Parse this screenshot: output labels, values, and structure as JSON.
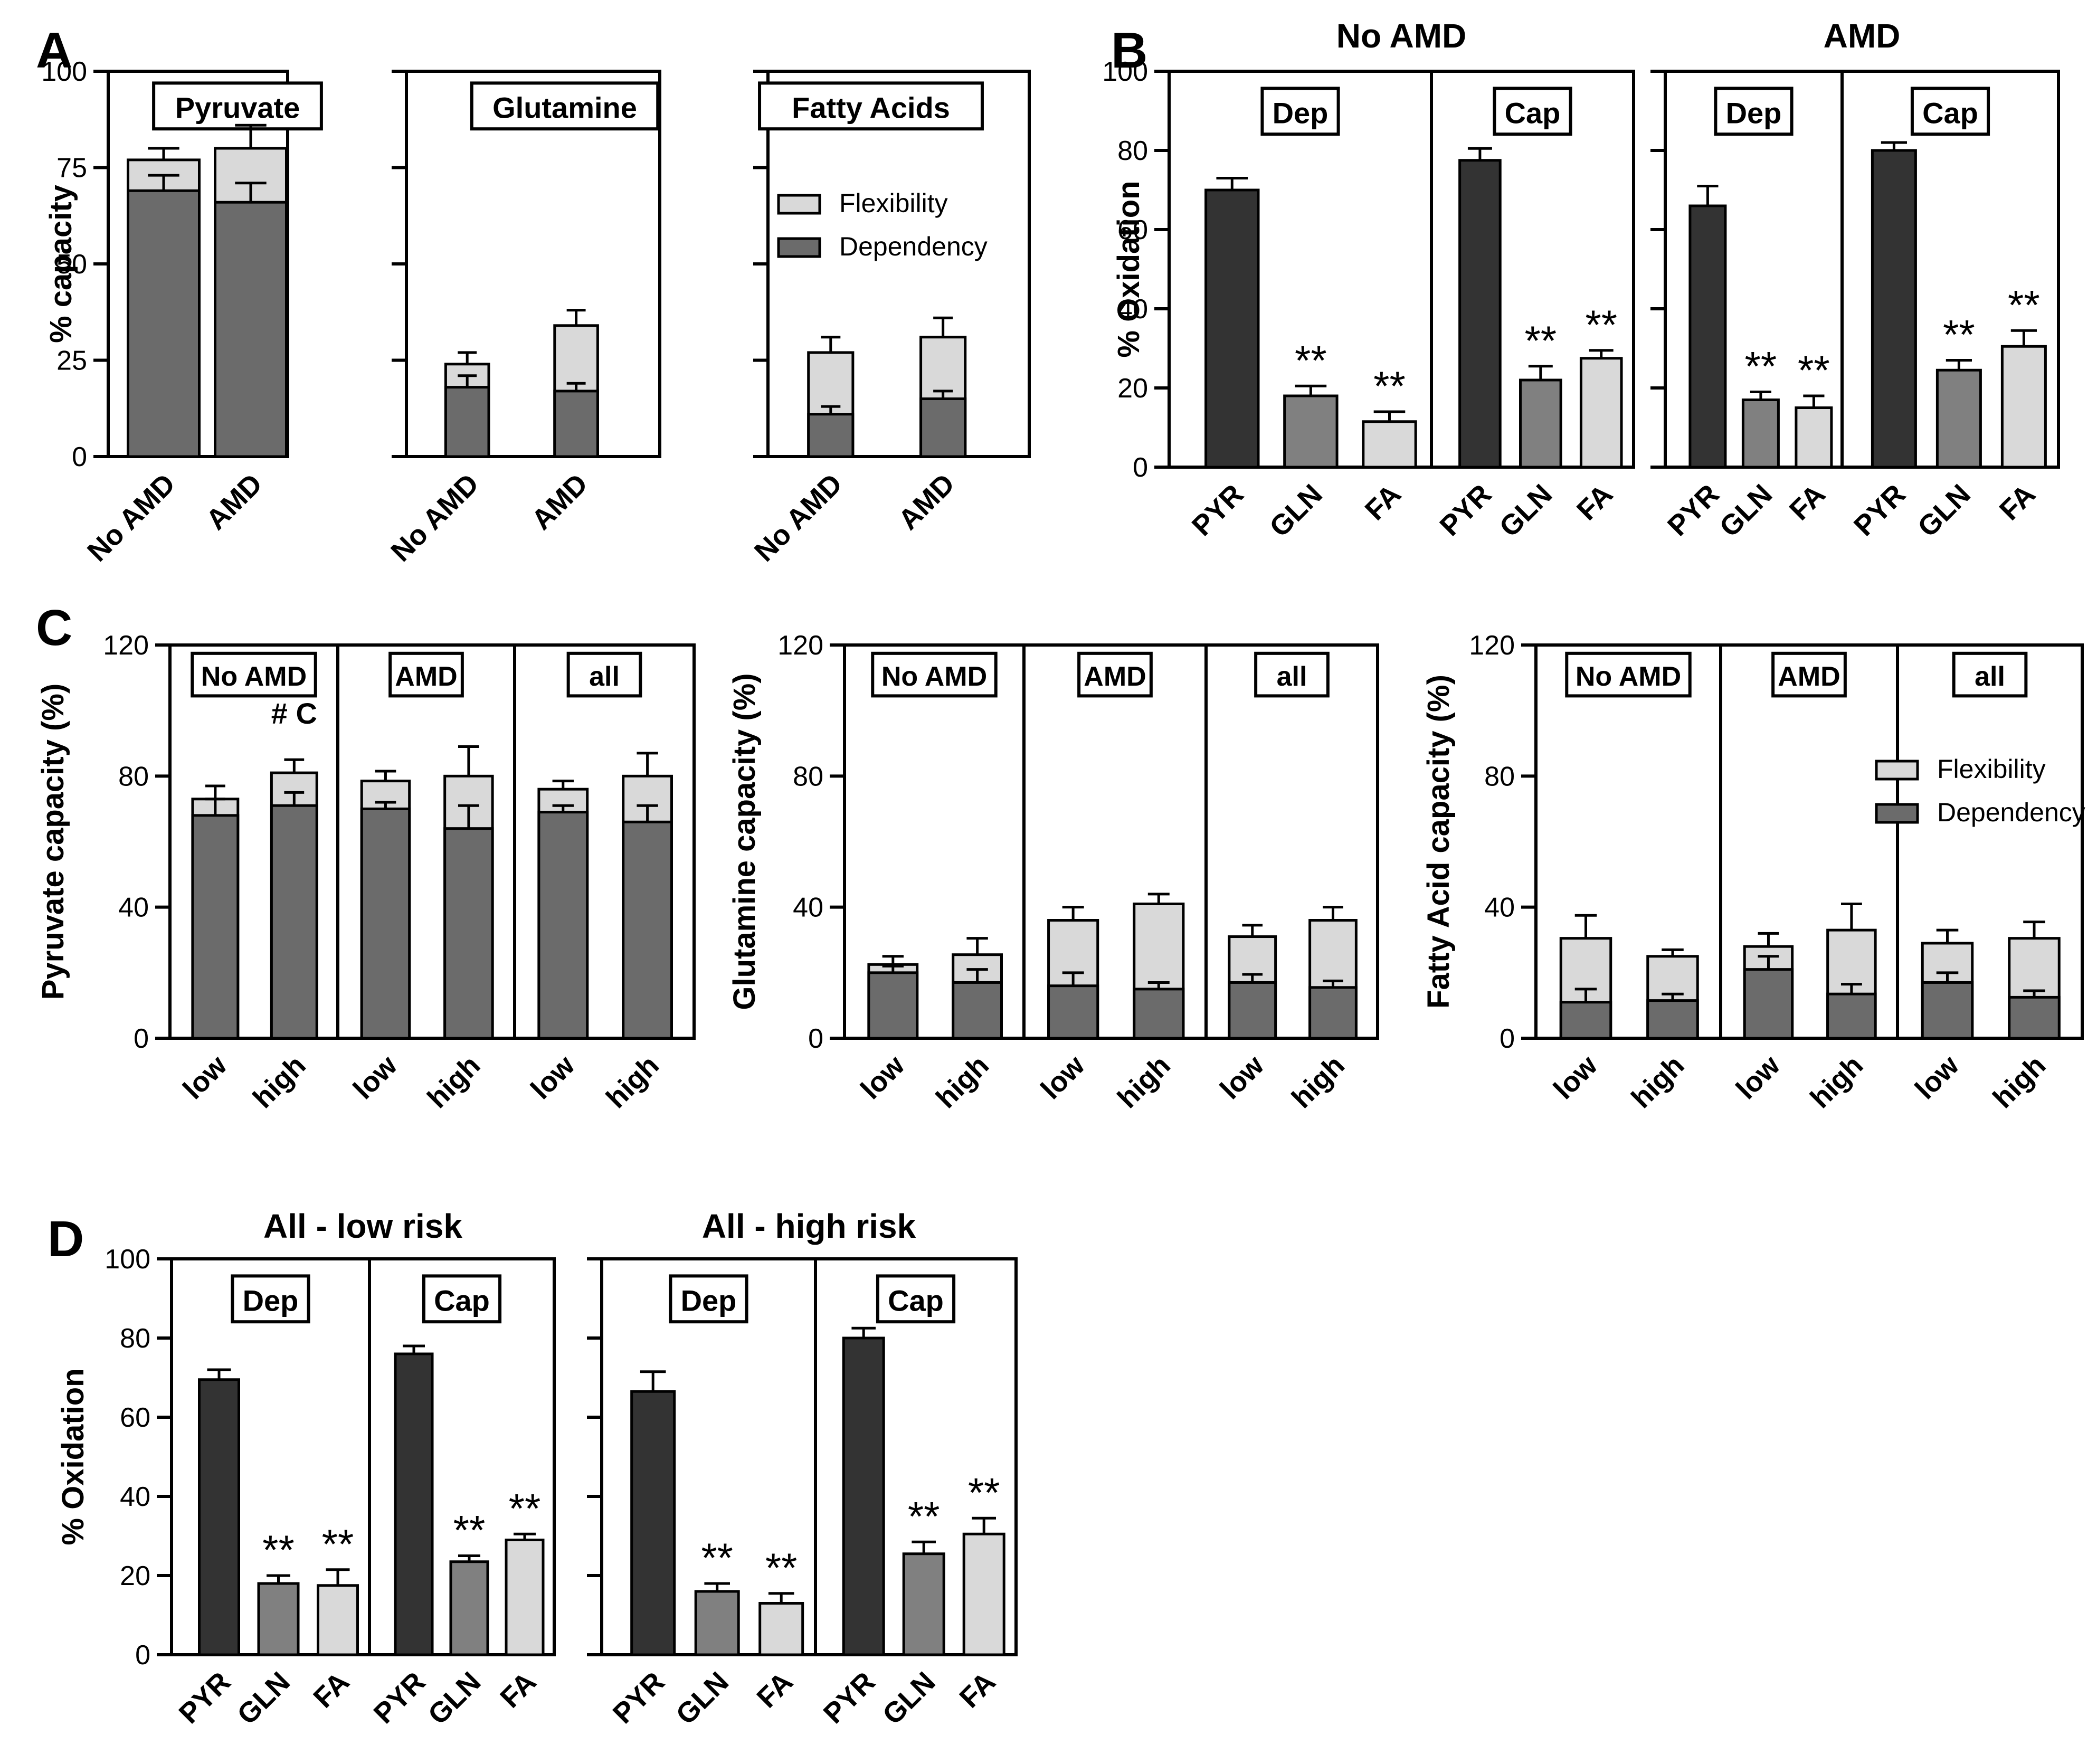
{
  "colors": {
    "dark": "#333333",
    "mid": "#808080",
    "light": "#d9d9d9",
    "axis": "#000000",
    "flex": "#d9d9d9",
    "dep": "#6b6b6b"
  },
  "panel_labels": {
    "A": "A",
    "B": "B",
    "C": "C",
    "D": "D"
  },
  "chart_data": [
    {
      "id": "A1",
      "type": "bar",
      "stacked": true,
      "panel": "A",
      "box_label": "Pyruvate",
      "ylabel": "% capacity",
      "yticks": [
        0,
        25,
        50,
        75,
        100
      ],
      "ylim": [
        0,
        100
      ],
      "categories": [
        "No AMD",
        "AMD"
      ],
      "series": [
        {
          "name": "Dependency",
          "values": [
            69,
            66
          ],
          "err": [
            4,
            5
          ]
        },
        {
          "name": "Flexibility",
          "values": [
            8,
            14
          ],
          "err": [
            3,
            6
          ]
        }
      ]
    },
    {
      "id": "A2",
      "type": "bar",
      "stacked": true,
      "panel": "A",
      "box_label": "Glutamine",
      "ylabel": "",
      "yticks": [
        0,
        25,
        50,
        75,
        100
      ],
      "ylim": [
        0,
        100
      ],
      "categories": [
        "No AMD",
        "AMD"
      ],
      "series": [
        {
          "name": "Dependency",
          "values": [
            18,
            17
          ],
          "err": [
            3,
            2
          ]
        },
        {
          "name": "Flexibility",
          "values": [
            6,
            17
          ],
          "err": [
            3,
            4
          ]
        }
      ]
    },
    {
      "id": "A3",
      "type": "bar",
      "stacked": true,
      "panel": "A",
      "box_label": "Fatty Acids",
      "ylabel": "",
      "yticks": [
        0,
        25,
        50,
        75,
        100
      ],
      "ylim": [
        0,
        100
      ],
      "categories": [
        "No AMD",
        "AMD"
      ],
      "legend": [
        "Flexibility",
        "Dependency"
      ],
      "legend_position": "right",
      "series": [
        {
          "name": "Dependency",
          "values": [
            11,
            15
          ],
          "err": [
            2,
            2
          ]
        },
        {
          "name": "Flexibility",
          "values": [
            16,
            16
          ],
          "err": [
            4,
            5
          ]
        }
      ]
    },
    {
      "id": "B",
      "type": "bar",
      "panel": "B",
      "ylabel": "% Oxidation",
      "yticks": [
        0,
        20,
        40,
        60,
        80,
        100
      ],
      "ylim": [
        0,
        100
      ],
      "groups": [
        {
          "title": "No AMD",
          "sub": [
            {
              "label": "Dep",
              "categories": [
                "PYR",
                "GLN",
                "FA"
              ],
              "values": [
                70,
                18,
                11.5
              ],
              "err": [
                3,
                2.5,
                2.5
              ],
              "sig": [
                "",
                "**",
                "**"
              ]
            },
            {
              "label": "Cap",
              "categories": [
                "PYR",
                "GLN",
                "FA"
              ],
              "values": [
                77.5,
                22,
                27.5
              ],
              "err": [
                3,
                3.5,
                2
              ],
              "sig": [
                "",
                "**",
                "**"
              ]
            }
          ]
        },
        {
          "title": "AMD",
          "sub": [
            {
              "label": "Dep",
              "categories": [
                "PYR",
                "GLN",
                "FA"
              ],
              "values": [
                66,
                17,
                15
              ],
              "err": [
                5,
                2,
                3
              ],
              "sig": [
                "",
                "**",
                "**"
              ]
            },
            {
              "label": "Cap",
              "categories": [
                "PYR",
                "GLN",
                "FA"
              ],
              "values": [
                80,
                24.5,
                30.5
              ],
              "err": [
                2,
                2.5,
                4
              ],
              "sig": [
                "",
                "**",
                "**"
              ]
            }
          ]
        }
      ]
    },
    {
      "id": "C1",
      "type": "bar",
      "stacked": true,
      "panel": "C",
      "ylabel": "Pyruvate capacity (%)",
      "yticks": [
        0,
        40,
        80,
        120
      ],
      "ylim": [
        0,
        120
      ],
      "groups": [
        {
          "label": "No AMD",
          "categories": [
            "low",
            "high"
          ],
          "dep": [
            68,
            71
          ],
          "dep_err": [
            5,
            4
          ],
          "flex": [
            5,
            10
          ],
          "flex_err": [
            4,
            4
          ]
        },
        {
          "label": "AMD",
          "categories": [
            "low",
            "high"
          ],
          "dep": [
            70,
            64
          ],
          "dep_err": [
            2,
            7
          ],
          "flex": [
            8.5,
            16
          ],
          "flex_err": [
            3,
            9
          ]
        },
        {
          "label": "all",
          "categories": [
            "low",
            "high"
          ],
          "dep": [
            69,
            66
          ],
          "dep_err": [
            2,
            5
          ],
          "flex": [
            7,
            14
          ],
          "flex_err": [
            2.5,
            7
          ]
        }
      ],
      "annotation": "# C"
    },
    {
      "id": "C2",
      "type": "bar",
      "stacked": true,
      "panel": "C",
      "ylabel": "Glutamine capacity (%)",
      "yticks": [
        0,
        40,
        80,
        120
      ],
      "ylim": [
        0,
        120
      ],
      "groups": [
        {
          "label": "No AMD",
          "categories": [
            "low",
            "high"
          ],
          "dep": [
            20,
            17
          ],
          "dep_err": [
            2,
            4
          ],
          "flex": [
            2.5,
            8.5
          ],
          "flex_err": [
            2.5,
            5
          ]
        },
        {
          "label": "AMD",
          "categories": [
            "low",
            "high"
          ],
          "dep": [
            16,
            15
          ],
          "dep_err": [
            4,
            2
          ],
          "flex": [
            20,
            26
          ],
          "flex_err": [
            4,
            3
          ]
        },
        {
          "label": "all",
          "categories": [
            "low",
            "high"
          ],
          "dep": [
            17,
            15.5
          ],
          "dep_err": [
            2.5,
            2
          ],
          "flex": [
            14,
            20.5
          ],
          "flex_err": [
            3.5,
            4
          ]
        }
      ]
    },
    {
      "id": "C3",
      "type": "bar",
      "stacked": true,
      "panel": "C",
      "ylabel": "Fatty Acid capacity (%)",
      "yticks": [
        0,
        40,
        80,
        120
      ],
      "ylim": [
        0,
        120
      ],
      "legend": [
        "Flexibility",
        "Dependency"
      ],
      "legend_position": "right",
      "groups": [
        {
          "label": "No AMD",
          "categories": [
            "low",
            "high"
          ],
          "dep": [
            11,
            11.5
          ],
          "dep_err": [
            4,
            2
          ],
          "flex": [
            19.5,
            13.5
          ],
          "flex_err": [
            7,
            2
          ]
        },
        {
          "label": "AMD",
          "categories": [
            "low",
            "high"
          ],
          "dep": [
            21,
            13.5
          ],
          "dep_err": [
            4,
            3
          ],
          "flex": [
            7,
            19.5
          ],
          "flex_err": [
            4,
            8
          ]
        },
        {
          "label": "all",
          "categories": [
            "low",
            "high"
          ],
          "dep": [
            17,
            12.5
          ],
          "dep_err": [
            3,
            2
          ],
          "flex": [
            12,
            18
          ],
          "flex_err": [
            4,
            5
          ]
        }
      ]
    },
    {
      "id": "D",
      "type": "bar",
      "panel": "D",
      "ylabel": "% Oxidation",
      "yticks": [
        0,
        20,
        40,
        60,
        80,
        100
      ],
      "ylim": [
        0,
        100
      ],
      "groups": [
        {
          "title": "All - low risk",
          "sub": [
            {
              "label": "Dep",
              "categories": [
                "PYR",
                "GLN",
                "FA"
              ],
              "values": [
                69.5,
                18,
                17.5
              ],
              "err": [
                2.5,
                2,
                4
              ],
              "sig": [
                "",
                "**",
                "**"
              ]
            },
            {
              "label": "Cap",
              "categories": [
                "PYR",
                "GLN",
                "FA"
              ],
              "values": [
                76,
                23.5,
                29
              ],
              "err": [
                2,
                1.5,
                1.5
              ],
              "sig": [
                "",
                "**",
                "**"
              ]
            }
          ]
        },
        {
          "title": "All - high risk",
          "sub": [
            {
              "label": "Dep",
              "categories": [
                "PYR",
                "GLN",
                "FA"
              ],
              "values": [
                66.5,
                16,
                13
              ],
              "err": [
                5,
                2,
                2.5
              ],
              "sig": [
                "",
                "**",
                "**"
              ]
            },
            {
              "label": "Cap",
              "categories": [
                "PYR",
                "GLN",
                "FA"
              ],
              "values": [
                80,
                25.5,
                30.5
              ],
              "err": [
                2.5,
                3,
                4
              ],
              "sig": [
                "",
                "**",
                "**"
              ]
            }
          ]
        }
      ]
    }
  ]
}
